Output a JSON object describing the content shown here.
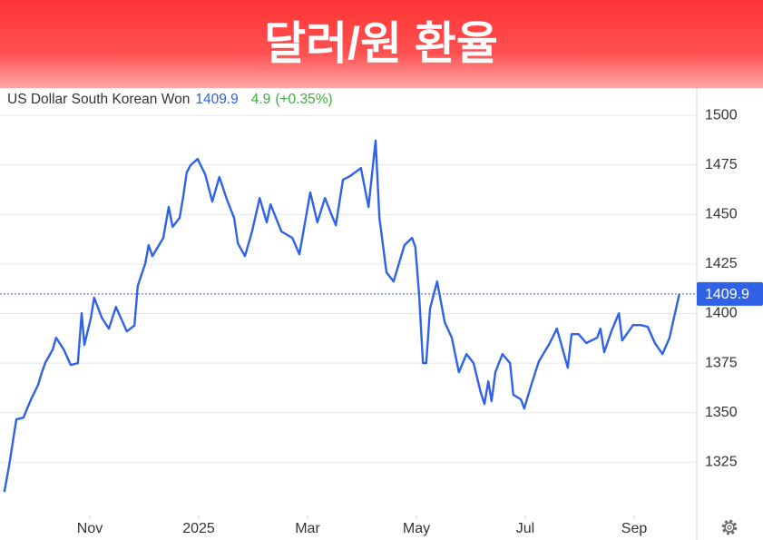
{
  "chart_data": {
    "type": "line",
    "title": "달러/원 환율",
    "series": [
      {
        "name": "US Dollar South Korean Won",
        "color": "#2f62e6",
        "x": [
          9.43,
          9.52,
          9.65,
          9.78,
          9.92,
          10.05,
          10.12,
          10.18,
          10.32,
          10.38,
          10.52,
          10.65,
          10.78,
          10.85,
          10.9,
          11.02,
          11.08,
          11.22,
          11.35,
          11.48,
          11.68,
          11.82,
          11.88,
          12.02,
          12.08,
          12.15,
          12.35,
          12.45,
          12.52,
          12.65,
          12.72,
          12.78,
          12.85,
          12.98,
          13.12,
          13.25,
          13.38,
          13.52,
          13.65,
          13.72,
          13.85,
          13.98,
          14.12,
          14.25,
          14.32,
          14.52,
          14.72,
          14.85,
          15.05,
          15.18,
          15.32,
          15.45,
          15.52,
          15.65,
          15.78,
          15.98,
          16.12,
          16.18,
          16.25,
          16.32,
          16.45,
          16.58,
          16.78,
          16.92,
          16.98,
          17.05,
          17.12,
          17.18,
          17.25,
          17.38,
          17.52,
          17.65,
          17.78,
          17.92,
          18.05,
          18.18,
          18.25,
          18.32,
          18.38,
          18.45,
          18.58,
          18.72,
          18.78,
          18.92,
          18.98,
          19.12,
          19.25,
          19.45,
          19.58,
          19.72,
          19.78,
          19.85,
          19.98,
          20.12,
          20.32,
          20.38,
          20.45,
          20.58,
          20.72,
          20.78,
          20.98,
          21.12,
          21.25,
          21.38,
          21.52,
          21.65,
          21.72,
          21.83
        ],
        "values": [
          1310.0,
          1323.7,
          1346.6,
          1347.5,
          1356.7,
          1364.0,
          1370.4,
          1375.0,
          1381.9,
          1387.8,
          1381.9,
          1374.1,
          1375.0,
          1400.2,
          1384.2,
          1397.9,
          1408.0,
          1397.9,
          1392.4,
          1403.4,
          1391.0,
          1394.0,
          1413.9,
          1425.4,
          1434.5,
          1429.0,
          1438.2,
          1453.8,
          1443.7,
          1448.3,
          1459.7,
          1471.2,
          1474.8,
          1478.0,
          1470.2,
          1456.5,
          1468.9,
          1457.4,
          1448.3,
          1435.4,
          1429.0,
          1441.4,
          1458.3,
          1446.0,
          1455.1,
          1441.4,
          1438.2,
          1429.9,
          1461.1,
          1446.0,
          1458.3,
          1449.2,
          1444.6,
          1467.5,
          1469.3,
          1473.4,
          1453.8,
          1469.3,
          1487.2,
          1448.3,
          1420.8,
          1416.2,
          1434.5,
          1438.2,
          1433.6,
          1409.3,
          1375.0,
          1375.0,
          1402.5,
          1416.2,
          1395.6,
          1387.8,
          1370.4,
          1379.6,
          1375.0,
          1360.3,
          1354.4,
          1365.8,
          1355.8,
          1370.4,
          1379.6,
          1375.0,
          1359.0,
          1356.7,
          1352.1,
          1364.9,
          1375.9,
          1385.1,
          1392.4,
          1378.7,
          1372.7,
          1389.6,
          1389.6,
          1385.1,
          1387.8,
          1392.4,
          1380.5,
          1391.0,
          1400.2,
          1386.4,
          1394.2,
          1394.2,
          1393.3,
          1385.1,
          1379.6,
          1387.8,
          1396.5,
          1409.9
        ]
      }
    ],
    "change": 4.9,
    "change_percent_label": "(+0.35%)",
    "change_color": "#3fae3f",
    "xlim": [
      9.4,
      22.2
    ],
    "xticks": [
      {
        "value": 11,
        "label": "Nov"
      },
      {
        "value": 13,
        "label": "2025"
      },
      {
        "value": 15,
        "label": "Mar"
      },
      {
        "value": 17,
        "label": "May"
      },
      {
        "value": 19,
        "label": "Jul"
      },
      {
        "value": 21,
        "label": "Sep"
      }
    ],
    "ylim": [
      1299.5,
      1512.4
    ],
    "yticks": [
      1325,
      1350,
      1375,
      1400,
      1425,
      1450,
      1475,
      1500
    ],
    "grid": true
  }
}
